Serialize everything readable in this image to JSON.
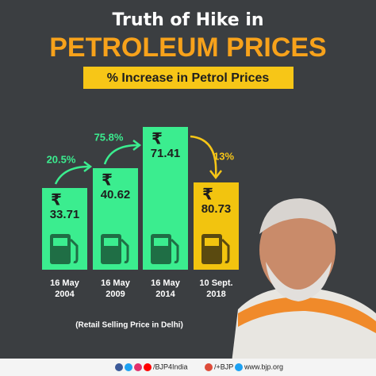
{
  "header": {
    "title_line1": "Truth of Hike in",
    "title_line2": "PETROLEUM PRICES",
    "subtitle": "% Increase in Petrol Prices"
  },
  "bars": [
    {
      "currency": "₹",
      "price": "33.71",
      "date": [
        "16 May",
        "2004"
      ]
    },
    {
      "currency": "₹",
      "price": "40.62",
      "date": [
        "16 May",
        "2009"
      ]
    },
    {
      "currency": "₹",
      "price": "71.41",
      "date": [
        "16 May",
        "2014"
      ]
    },
    {
      "currency": "₹",
      "price": "80.73",
      "date": [
        "10 Sept.",
        "2018"
      ]
    }
  ],
  "increases": [
    "20.5%",
    "75.8%",
    "13%"
  ],
  "note": "(Retail Selling Price in Delhi)",
  "footer": {
    "handle": "/BJP4India",
    "gplus": "/+BJP",
    "site": "www.bjp.org"
  }
}
